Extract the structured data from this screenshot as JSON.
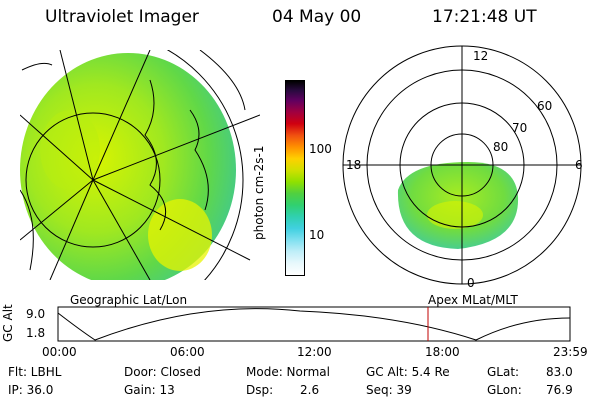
{
  "header": {
    "title": "Ultraviolet Imager",
    "date": "04 May 00",
    "time": "17:21:48 UT"
  },
  "colorbar": {
    "label": "photon cm-2s-1",
    "tick_100": "100",
    "tick_10": "10"
  },
  "geo_panel": {
    "caption": "Geographic Lat/Lon"
  },
  "polar_panel": {
    "caption": "Apex MLat/MLT",
    "mlt_12": "12",
    "mlt_18": "18",
    "mlt_6": "6",
    "mlt_0": "0",
    "lat_60": "60",
    "lat_70": "70",
    "lat_80": "80"
  },
  "orbit_plot": {
    "axis_label": "GC Alt",
    "y_top": "9.0",
    "y_bottom": "1.8",
    "x_ticks": [
      "00:00",
      "06:00",
      "12:00",
      "18:00",
      "23:59"
    ]
  },
  "footer": {
    "flt": "Flt: LBHL",
    "ip": "IP: 36.0",
    "door": "Door: Closed",
    "gain": "Gain: 13",
    "mode": "Mode: Normal",
    "dsp_label": "Dsp:",
    "dsp_value": "2.6",
    "gc_alt": "GC Alt: 5.4 Re",
    "seq": "Seq: 39",
    "glat_label": "GLat:",
    "glat_value": "83.0",
    "glon_label": "GLon:",
    "glon_value": "76.9"
  },
  "colors": {
    "aurora_light": "#c8f000",
    "aurora_mid": "#60d848",
    "aurora_teal": "#30c8a0",
    "marker_line": "#c00000"
  }
}
